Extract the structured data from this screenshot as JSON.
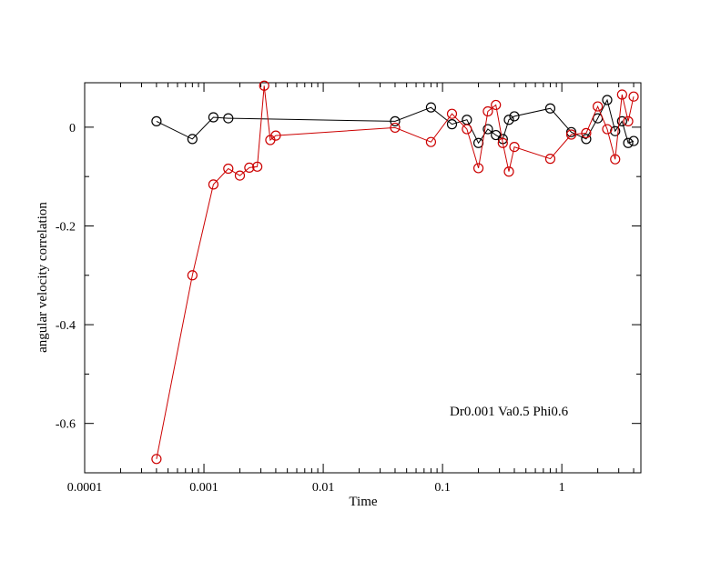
{
  "chart_data": {
    "type": "scatter",
    "title": "",
    "xlabel": "Time",
    "ylabel": "angular velocity correlation",
    "annotation": "Dr0.001 Va0.5 Phi0.6",
    "x_scale": "log",
    "xlim": [
      0.0001,
      4.6
    ],
    "ylim": [
      -0.7,
      0.09
    ],
    "x_tick_labels": [
      "0.0001",
      "0.001",
      "0.01",
      "0.1",
      "1"
    ],
    "x_ticks": [
      0.0001,
      0.001,
      0.01,
      0.1,
      1
    ],
    "y_tick_labels": [
      "-0.6",
      "-0.4",
      "-0.2",
      "0"
    ],
    "y_ticks": [
      -0.6,
      -0.4,
      -0.2,
      0
    ],
    "y_minor_ticks": [
      -0.7,
      -0.5,
      -0.3,
      -0.1
    ],
    "grid": false,
    "legend": "none",
    "series": [
      {
        "color": "#000000",
        "marker": "circle",
        "x": [
          0.0004,
          0.0008,
          0.0012,
          0.0016,
          0.04,
          0.08,
          0.12,
          0.16,
          0.2,
          0.24,
          0.28,
          0.32,
          0.36,
          0.4,
          0.8,
          1.2,
          1.6,
          2.0,
          2.4,
          2.8,
          3.2,
          3.6,
          4.0
        ],
        "y": [
          0.012,
          -0.024,
          0.02,
          0.018,
          0.012,
          0.04,
          0.006,
          0.015,
          -0.032,
          -0.004,
          -0.016,
          -0.024,
          0.015,
          0.022,
          0.038,
          -0.01,
          -0.024,
          0.018,
          0.055,
          -0.008,
          0.012,
          -0.032,
          -0.028
        ]
      },
      {
        "color": "#cc0000",
        "marker": "circle",
        "x": [
          0.0004,
          0.0008,
          0.0012,
          0.0016,
          0.002,
          0.0024,
          0.0028,
          0.0032,
          0.0036,
          0.004,
          0.04,
          0.08,
          0.12,
          0.16,
          0.2,
          0.24,
          0.28,
          0.32,
          0.36,
          0.4,
          0.8,
          1.2,
          1.6,
          2.0,
          2.4,
          2.8,
          3.2,
          3.6,
          4.0
        ],
        "y": [
          -0.672,
          -0.3,
          -0.116,
          -0.084,
          -0.098,
          -0.082,
          -0.08,
          0.084,
          -0.026,
          -0.017,
          -0.001,
          -0.03,
          0.027,
          -0.004,
          -0.083,
          0.032,
          0.045,
          -0.032,
          -0.09,
          -0.04,
          -0.064,
          -0.015,
          -0.012,
          0.042,
          -0.004,
          -0.065,
          0.066,
          0.012,
          0.062
        ]
      }
    ]
  }
}
